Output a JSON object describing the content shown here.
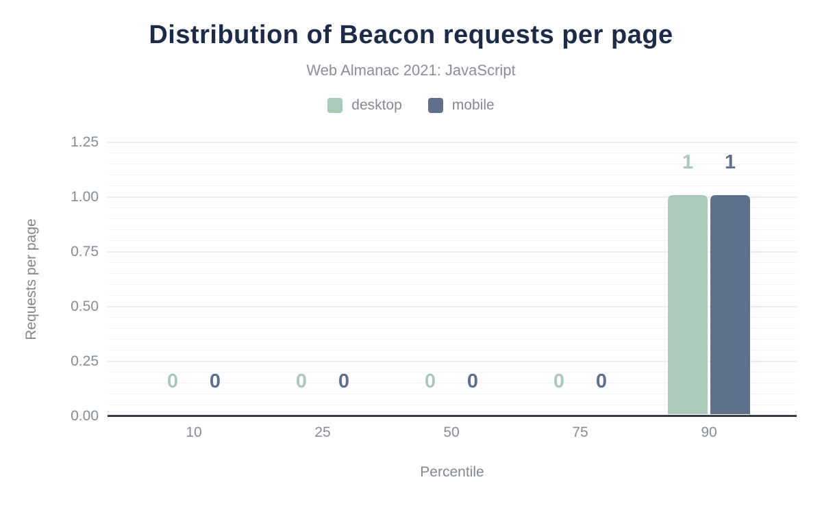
{
  "chart_data": {
    "type": "bar",
    "title": "Distribution of Beacon requests per page",
    "subtitle": "Web Almanac 2021: JavaScript",
    "xlabel": "Percentile",
    "ylabel": "Requests per page",
    "categories": [
      "10",
      "25",
      "50",
      "75",
      "90"
    ],
    "series": [
      {
        "name": "desktop",
        "color": "#a9cab9",
        "values": [
          0,
          0,
          0,
          0,
          1
        ]
      },
      {
        "name": "mobile",
        "color": "#5e708c",
        "values": [
          0,
          0,
          0,
          0,
          1
        ]
      }
    ],
    "data_labels": [
      {
        "name": "desktop",
        "labels": [
          "0",
          "0",
          "0",
          "0",
          "1"
        ]
      },
      {
        "name": "mobile",
        "labels": [
          "0",
          "0",
          "0",
          "0",
          "1"
        ]
      }
    ],
    "ylim": [
      0,
      1.25
    ],
    "yticks": [
      "0.00",
      "0.25",
      "0.50",
      "0.75",
      "1.00",
      "1.25"
    ],
    "ytick_values": [
      0,
      0.25,
      0.5,
      0.75,
      1,
      1.25
    ],
    "minor_tick_step": 0.05,
    "grid": "horizontal major+minor",
    "legend_position": "top-center"
  },
  "colors": {
    "title": "#1c2b4a",
    "subtitle": "#8a8e96",
    "tick_text": "#878c94",
    "axis_title_text": "#82878f",
    "axis_line": "#343a42",
    "grid_major": "#eaecee",
    "grid_minor": "#f4f5f7",
    "background": "#ffffff"
  }
}
